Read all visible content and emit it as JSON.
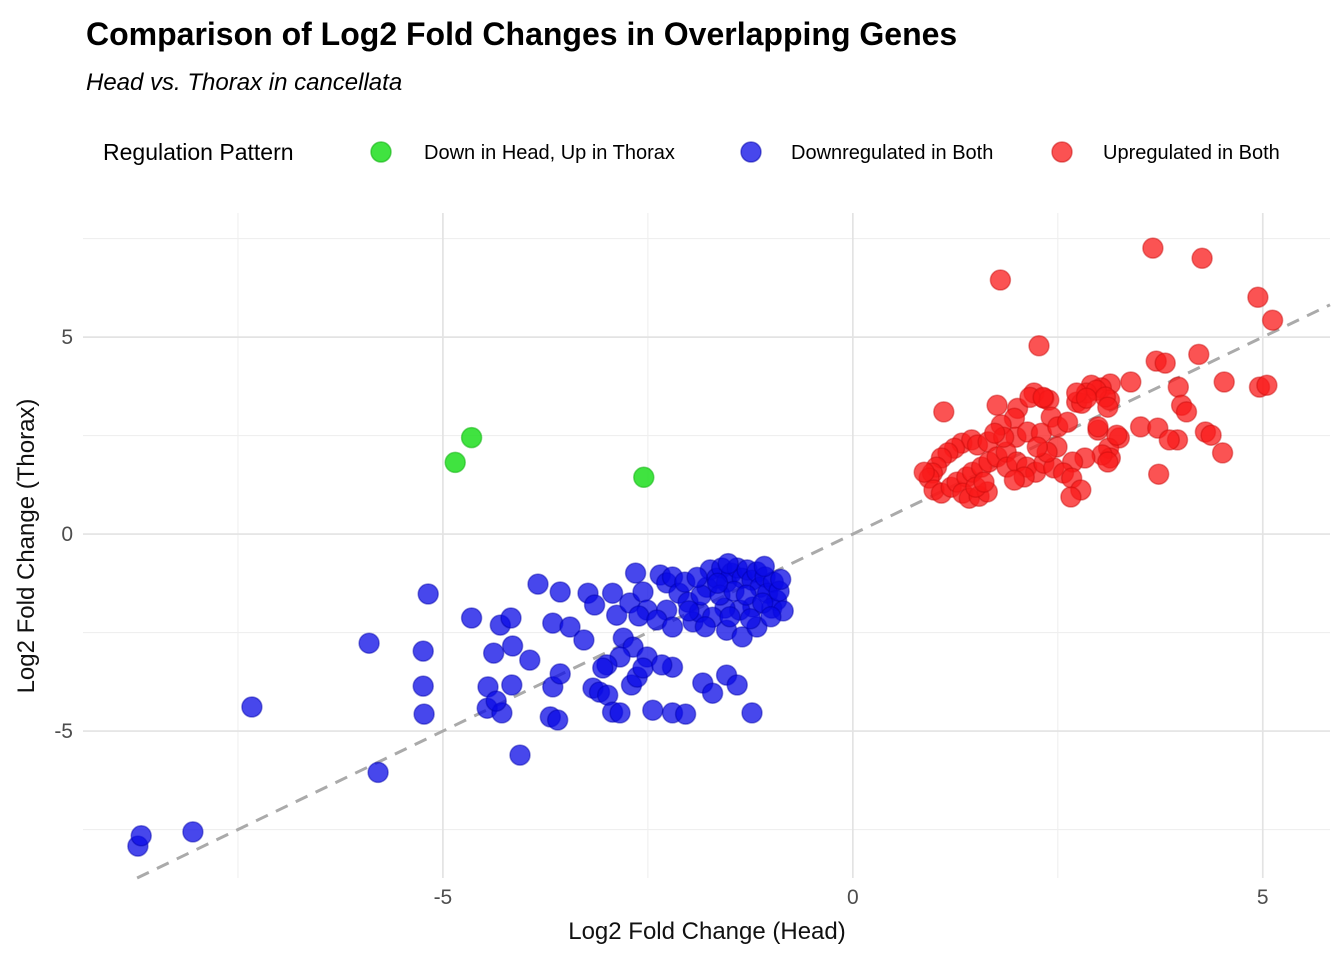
{
  "chart_data": {
    "type": "scatter",
    "title": "Comparison of Log2 Fold Changes in Overlapping Genes",
    "subtitle": "Head vs. Thorax in cancellata",
    "xlabel": "Log2 Fold Change (Head)",
    "ylabel": "Log2 Fold Change (Thorax)",
    "legend_title": "Regulation Pattern",
    "legend_position": "top",
    "grid": "on",
    "xlim": [
      -9.39,
      5.82
    ],
    "ylim": [
      -8.73,
      8.15
    ],
    "x_ticks": [
      {
        "v": -5,
        "label": "-5"
      },
      {
        "v": 0,
        "label": "0"
      },
      {
        "v": 5,
        "label": "5"
      }
    ],
    "y_ticks": [
      {
        "v": -5,
        "label": "-5"
      },
      {
        "v": 0,
        "label": "0"
      },
      {
        "v": 5,
        "label": "5"
      }
    ],
    "x_minor": [
      -7.5,
      -2.5,
      2.5
    ],
    "y_minor": [
      -7.5,
      -2.5,
      2.5,
      7.5
    ],
    "grid_major_color": "#e3e3e3",
    "grid_minor_color": "#efefef",
    "identity_line": {
      "from": -8.73,
      "to": 5.82,
      "color": "#aaaaaa",
      "dash": "13 9",
      "width": 3
    },
    "point_radius": 10,
    "series": [
      {
        "name": "Down in Head, Up in Thorax",
        "color": "#40e340",
        "fill": "rgba(30,222,30,0.85)",
        "stroke": "rgba(20,180,20,0.55)",
        "points": [
          [
            -4.65,
            2.45
          ],
          [
            -4.85,
            1.82
          ],
          [
            -2.55,
            1.44
          ]
        ]
      },
      {
        "name": "Downregulated in Both",
        "color": "#4747ec",
        "fill": "rgba(10,10,230,0.75)",
        "stroke": "rgba(0,0,170,0.45)",
        "points": [
          [
            -8.72,
            -7.92
          ],
          [
            -8.68,
            -7.66
          ],
          [
            -8.05,
            -7.56
          ],
          [
            -7.33,
            -4.39
          ],
          [
            -5.9,
            -2.77
          ],
          [
            -5.79,
            -6.05
          ],
          [
            -5.24,
            -2.97
          ],
          [
            -5.24,
            -3.86
          ],
          [
            -5.23,
            -4.57
          ],
          [
            -5.18,
            -1.52
          ],
          [
            -4.65,
            -2.13
          ],
          [
            -4.3,
            -2.31
          ],
          [
            -4.17,
            -2.13
          ],
          [
            -3.84,
            -1.27
          ],
          [
            -3.57,
            -1.47
          ],
          [
            -4.15,
            -2.84
          ],
          [
            -4.38,
            -3.02
          ],
          [
            -3.94,
            -3.2
          ],
          [
            -3.66,
            -2.26
          ],
          [
            -3.45,
            -2.36
          ],
          [
            -3.28,
            -2.69
          ],
          [
            -3.23,
            -1.5
          ],
          [
            -3.15,
            -1.8
          ],
          [
            -2.93,
            -1.5
          ],
          [
            -2.88,
            -2.06
          ],
          [
            -2.72,
            -1.75
          ],
          [
            -2.65,
            -0.99
          ],
          [
            -2.56,
            -1.47
          ],
          [
            -2.51,
            -1.93
          ],
          [
            -2.61,
            -2.08
          ],
          [
            -2.35,
            -1.04
          ],
          [
            -2.27,
            -1.24
          ],
          [
            -2.2,
            -1.09
          ],
          [
            -2.12,
            -1.5
          ],
          [
            -2.05,
            -1.22
          ],
          [
            -2.01,
            -1.73
          ],
          [
            -2.27,
            -1.93
          ],
          [
            -2.39,
            -2.18
          ],
          [
            -2.2,
            -2.36
          ],
          [
            -1.95,
            -2.23
          ],
          [
            -1.87,
            -1.98
          ],
          [
            -2.8,
            -2.64
          ],
          [
            -2.68,
            -2.87
          ],
          [
            -2.51,
            -3.12
          ],
          [
            -2.84,
            -3.12
          ],
          [
            -3.0,
            -3.32
          ],
          [
            -1.78,
            -1.35
          ],
          [
            -1.74,
            -0.91
          ],
          [
            -1.66,
            -1.12
          ],
          [
            -1.6,
            -0.86
          ],
          [
            -1.54,
            -1.22
          ],
          [
            -1.48,
            -0.99
          ],
          [
            -1.41,
            -0.86
          ],
          [
            -1.35,
            -1.12
          ],
          [
            -1.29,
            -0.91
          ],
          [
            -1.23,
            -1.17
          ],
          [
            -1.17,
            -0.96
          ],
          [
            -1.13,
            -1.35
          ],
          [
            -1.07,
            -1.09
          ],
          [
            -1.04,
            -1.5
          ],
          [
            -0.97,
            -1.22
          ],
          [
            -0.93,
            -1.68
          ],
          [
            -0.99,
            -1.88
          ],
          [
            -1.22,
            -1.85
          ],
          [
            -1.38,
            -1.93
          ],
          [
            -1.56,
            -1.88
          ],
          [
            -1.71,
            -2.11
          ],
          [
            -1.54,
            -2.44
          ],
          [
            -1.35,
            -2.61
          ],
          [
            -1.17,
            -2.36
          ],
          [
            -1.85,
            -1.55
          ],
          [
            -1.62,
            -1.55
          ],
          [
            -1.45,
            -1.45
          ],
          [
            -1.3,
            -1.55
          ],
          [
            -1.1,
            -1.75
          ],
          [
            -0.9,
            -1.45
          ],
          [
            -0.85,
            -1.95
          ],
          [
            -1.0,
            -2.1
          ],
          [
            -1.25,
            -2.15
          ],
          [
            -1.5,
            -2.1
          ],
          [
            -1.65,
            -1.25
          ],
          [
            -1.9,
            -1.1
          ],
          [
            -2.0,
            -1.95
          ],
          [
            -1.8,
            -2.35
          ],
          [
            -0.88,
            -1.15
          ],
          [
            -1.52,
            -0.75
          ],
          [
            -1.08,
            -0.82
          ],
          [
            -4.45,
            -3.88
          ],
          [
            -4.16,
            -3.83
          ],
          [
            -4.46,
            -4.42
          ],
          [
            -4.28,
            -4.54
          ],
          [
            -4.35,
            -4.24
          ],
          [
            -3.66,
            -3.88
          ],
          [
            -3.57,
            -3.55
          ],
          [
            -4.06,
            -5.61
          ],
          [
            -3.69,
            -4.64
          ],
          [
            -3.6,
            -4.72
          ],
          [
            -3.17,
            -3.91
          ],
          [
            -3.09,
            -4.01
          ],
          [
            -2.99,
            -4.09
          ],
          [
            -2.93,
            -4.52
          ],
          [
            -2.84,
            -4.54
          ],
          [
            -2.7,
            -3.83
          ],
          [
            -2.63,
            -3.63
          ],
          [
            -2.56,
            -3.4
          ],
          [
            -2.44,
            -4.47
          ],
          [
            -2.2,
            -3.38
          ],
          [
            -2.33,
            -3.32
          ],
          [
            -3.05,
            -3.4
          ],
          [
            -2.2,
            -4.54
          ],
          [
            -2.04,
            -4.57
          ],
          [
            -1.23,
            -4.54
          ],
          [
            -1.54,
            -3.58
          ],
          [
            -1.83,
            -3.78
          ],
          [
            -1.71,
            -4.04
          ],
          [
            -1.41,
            -3.83
          ]
        ]
      },
      {
        "name": "Upregulated in Both",
        "color": "#fb5252",
        "fill": "rgba(250,25,25,0.75)",
        "stroke": "rgba(200,10,10,0.45)",
        "points": [
          [
            1.8,
            6.45
          ],
          [
            3.66,
            7.26
          ],
          [
            4.26,
            7.0
          ],
          [
            4.94,
            6.01
          ],
          [
            5.12,
            5.43
          ],
          [
            2.27,
            4.78
          ],
          [
            4.22,
            4.56
          ],
          [
            3.7,
            4.39
          ],
          [
            3.81,
            4.34
          ],
          [
            3.39,
            3.86
          ],
          [
            3.14,
            3.81
          ],
          [
            3.03,
            3.71
          ],
          [
            2.91,
            3.78
          ],
          [
            3.13,
            3.4
          ],
          [
            2.21,
            3.58
          ],
          [
            2.33,
            3.45
          ],
          [
            2.39,
            3.4
          ],
          [
            2.73,
            3.35
          ],
          [
            2.85,
            3.58
          ],
          [
            2.97,
            3.65
          ],
          [
            3.08,
            3.48
          ],
          [
            2.79,
            3.32
          ],
          [
            4.53,
            3.86
          ],
          [
            4.96,
            3.73
          ],
          [
            5.05,
            3.78
          ],
          [
            3.97,
            3.73
          ],
          [
            4.01,
            3.27
          ],
          [
            4.07,
            3.1
          ],
          [
            4.3,
            2.59
          ],
          [
            4.37,
            2.51
          ],
          [
            4.51,
            2.06
          ],
          [
            3.73,
            1.52
          ],
          [
            3.96,
            2.39
          ],
          [
            3.51,
            2.72
          ],
          [
            3.72,
            2.69
          ],
          [
            3.86,
            2.39
          ],
          [
            3.25,
            2.44
          ],
          [
            3.12,
            2.18
          ],
          [
            3.14,
            1.93
          ],
          [
            2.99,
            2.64
          ],
          [
            1.11,
            3.1
          ],
          [
            1.76,
            3.27
          ],
          [
            2.01,
            3.19
          ],
          [
            2.16,
            3.47
          ],
          [
            2.32,
            3.47
          ],
          [
            2.42,
            2.97
          ],
          [
            1.97,
            2.94
          ],
          [
            1.81,
            2.77
          ],
          [
            1.99,
            2.46
          ],
          [
            2.13,
            2.59
          ],
          [
            2.3,
            2.56
          ],
          [
            2.5,
            2.72
          ],
          [
            2.62,
            2.84
          ],
          [
            2.73,
            3.58
          ],
          [
            2.85,
            3.45
          ],
          [
            3.11,
            3.22
          ],
          [
            2.99,
            2.72
          ],
          [
            3.22,
            2.51
          ],
          [
            3.04,
            2.01
          ],
          [
            3.11,
            1.83
          ],
          [
            2.83,
            1.93
          ],
          [
            2.68,
            1.83
          ],
          [
            1.33,
            2.31
          ],
          [
            1.45,
            2.39
          ],
          [
            1.52,
            2.26
          ],
          [
            1.65,
            2.34
          ],
          [
            1.24,
            2.18
          ],
          [
            1.16,
            2.06
          ],
          [
            1.08,
            1.93
          ],
          [
            1.02,
            1.7
          ],
          [
            0.97,
            1.55
          ],
          [
            0.93,
            1.42
          ],
          [
            0.87,
            1.57
          ],
          [
            0.99,
            1.12
          ],
          [
            1.08,
            1.04
          ],
          [
            1.2,
            1.19
          ],
          [
            1.27,
            1.32
          ],
          [
            1.39,
            1.45
          ],
          [
            1.46,
            1.57
          ],
          [
            1.57,
            1.7
          ],
          [
            1.66,
            1.83
          ],
          [
            1.76,
            1.96
          ],
          [
            1.87,
            2.08
          ],
          [
            1.34,
            1.04
          ],
          [
            1.42,
            0.91
          ],
          [
            1.54,
            0.96
          ],
          [
            1.64,
            1.07
          ],
          [
            1.5,
            1.19
          ],
          [
            1.6,
            1.32
          ],
          [
            1.88,
            1.7
          ],
          [
            2.0,
            1.83
          ],
          [
            2.12,
            1.7
          ],
          [
            2.23,
            1.57
          ],
          [
            2.09,
            1.45
          ],
          [
            1.97,
            1.37
          ],
          [
            2.33,
            1.8
          ],
          [
            2.45,
            1.68
          ],
          [
            2.57,
            1.55
          ],
          [
            2.67,
            1.42
          ],
          [
            2.49,
            2.21
          ],
          [
            2.37,
            2.08
          ],
          [
            2.25,
            2.21
          ],
          [
            1.84,
            2.46
          ],
          [
            1.73,
            2.56
          ],
          [
            2.78,
            1.12
          ],
          [
            2.66,
            0.94
          ]
        ]
      }
    ]
  }
}
